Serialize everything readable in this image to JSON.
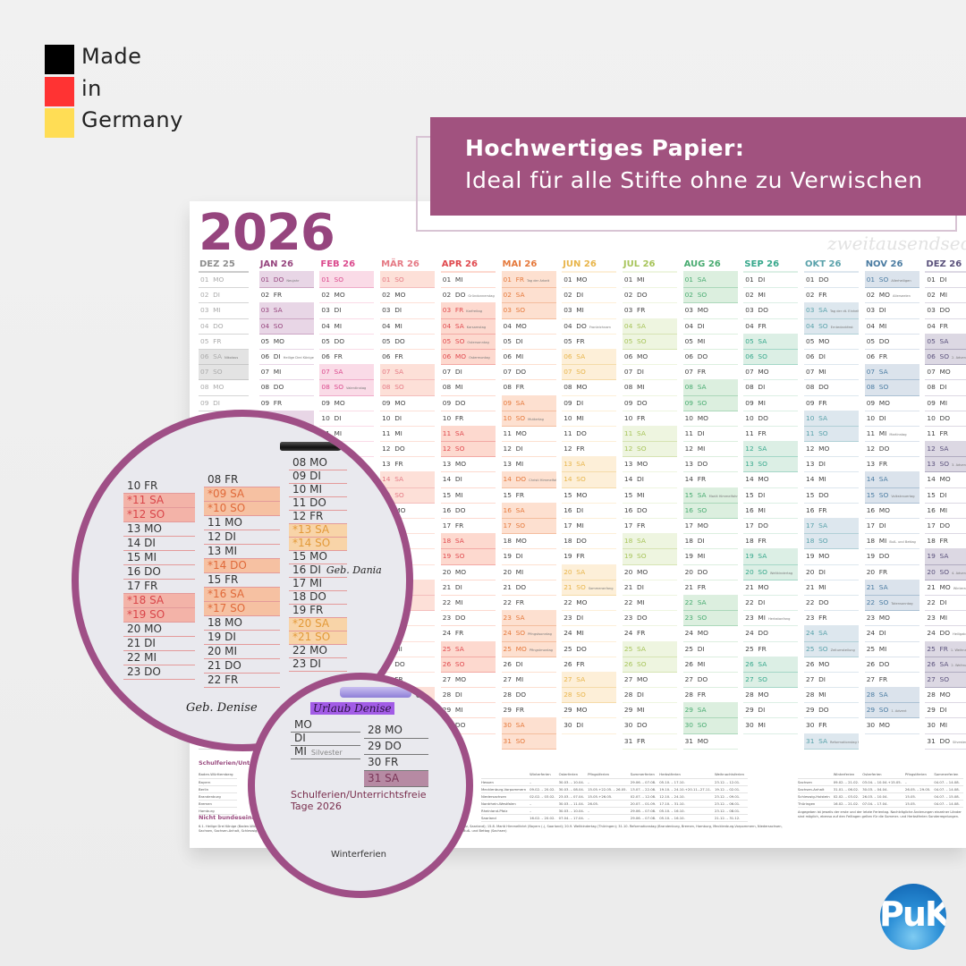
{
  "made_in": {
    "lines": [
      "Made",
      "in",
      "Germany"
    ],
    "flag_colors": [
      "#000000",
      "#ff3333",
      "#ffdd55"
    ]
  },
  "banner": {
    "title": "Hochwertiges Papier:",
    "subtitle": "Ideal für alle Stifte ohne zu Verwischen",
    "color": "#a1527f"
  },
  "calendar": {
    "year": "2026",
    "brand": "zweitausendsechs",
    "weekdays": [
      "MO",
      "DI",
      "MI",
      "DO",
      "FR",
      "SA",
      "SO"
    ],
    "months": [
      {
        "label": "DEZ 25",
        "first_weekday": 0,
        "days": 31,
        "color": "#8f8f8f",
        "light": "#e3e3e3",
        "faded": true,
        "holidays": [
          {
            "day": 6,
            "name": "Nikolaus"
          }
        ]
      },
      {
        "label": "JAN 26",
        "first_weekday": 3,
        "days": 31,
        "color": "#96457e",
        "light": "#e8d6e6",
        "holidays": [
          {
            "day": 1,
            "name": "Neujahr",
            "public": true
          },
          {
            "day": 6,
            "name": "Heilige Drei Könige"
          }
        ]
      },
      {
        "label": "FEB 26",
        "first_weekday": 6,
        "days": 28,
        "color": "#db4b8e",
        "light": "#fadbe7",
        "holidays": [
          {
            "day": 8,
            "name": "Valentinstag"
          }
        ]
      },
      {
        "label": "MÄR 26",
        "first_weekday": 6,
        "days": 31,
        "color": "#e57a85",
        "light": "#fde0d8",
        "holidays": []
      },
      {
        "label": "APR 26",
        "first_weekday": 2,
        "days": 30,
        "color": "#e04a4f",
        "light": "#fdd9cf",
        "holidays": [
          {
            "day": 2,
            "name": "Gründonnerstag"
          },
          {
            "day": 3,
            "name": "Karfreitag",
            "public": true
          },
          {
            "day": 4,
            "name": "Karsamstag",
            "public": true
          },
          {
            "day": 5,
            "name": "Ostersonntag",
            "public": true
          },
          {
            "day": 6,
            "name": "Ostermontag",
            "public": true
          }
        ]
      },
      {
        "label": "MAI 26",
        "first_weekday": 4,
        "days": 31,
        "color": "#e5793c",
        "light": "#fde0d0",
        "holidays": [
          {
            "day": 1,
            "name": "Tag der Arbeit",
            "public": true
          },
          {
            "day": 10,
            "name": "Muttertag"
          },
          {
            "day": 14,
            "name": "Christi Himmelfahrt",
            "public": true
          },
          {
            "day": 24,
            "name": "Pfingstsonntag"
          },
          {
            "day": 25,
            "name": "Pfingstmontag",
            "public": true
          }
        ]
      },
      {
        "label": "JUN 26",
        "first_weekday": 0,
        "days": 30,
        "color": "#e8b54b",
        "light": "#fdefd8",
        "holidays": [
          {
            "day": 4,
            "name": "Fronleichnam"
          },
          {
            "day": 21,
            "name": "Sommeranfang"
          }
        ]
      },
      {
        "label": "JUL 26",
        "first_weekday": 2,
        "days": 31,
        "color": "#a7c45a",
        "light": "#eef5e0",
        "holidays": []
      },
      {
        "label": "AUG 26",
        "first_weekday": 5,
        "days": 31,
        "color": "#4aac72",
        "light": "#dcefdf",
        "holidays": [
          {
            "day": 15,
            "name": "Mariä Himmelfahrt"
          }
        ]
      },
      {
        "label": "SEP 26",
        "first_weekday": 1,
        "days": 30,
        "color": "#37a88c",
        "light": "#dcefe5",
        "holidays": [
          {
            "day": 20,
            "name": "Weltkindertag"
          },
          {
            "day": 23,
            "name": "Herbstanfang"
          }
        ]
      },
      {
        "label": "OKT 26",
        "first_weekday": 3,
        "days": 31,
        "color": "#5aa2ab",
        "light": "#dde7ee",
        "holidays": [
          {
            "day": 3,
            "name": "Tag der dt. Einheit",
            "public": true
          },
          {
            "day": 4,
            "name": "Erntedankfest"
          },
          {
            "day": 25,
            "name": "Zeitumstellung"
          },
          {
            "day": 31,
            "name": "Reformationstag Halloween"
          }
        ]
      },
      {
        "label": "NOV 26",
        "first_weekday": 6,
        "days": 30,
        "color": "#4b7ca2",
        "light": "#dbe3ec",
        "holidays": [
          {
            "day": 1,
            "name": "Allerheiligen"
          },
          {
            "day": 2,
            "name": "Allerseelen"
          },
          {
            "day": 11,
            "name": "Martinstag"
          },
          {
            "day": 15,
            "name": "Volkstrauertag"
          },
          {
            "day": 18,
            "name": "Buß- und Bettag"
          },
          {
            "day": 22,
            "name": "Totensonntag"
          },
          {
            "day": 29,
            "name": "1. Advent"
          }
        ]
      },
      {
        "label": "DEZ 26",
        "first_weekday": 1,
        "days": 31,
        "color": "#5b527c",
        "light": "#dcd8e3",
        "holidays": [
          {
            "day": 6,
            "name": "2. Advent Nikolaus"
          },
          {
            "day": 13,
            "name": "3. Advent"
          },
          {
            "day": 20,
            "name": "4. Advent"
          },
          {
            "day": 21,
            "name": "Winteranfang"
          },
          {
            "day": 24,
            "name": "Heiligabend"
          },
          {
            "day": 25,
            "name": "1. Weihnachtstag",
            "public": true
          },
          {
            "day": 26,
            "name": "2. Weihnachtstag",
            "public": true
          },
          {
            "day": 31,
            "name": "Silvester"
          }
        ]
      }
    ]
  },
  "holidays_section": {
    "title": "Schulferien/Unterrichtsfreie Tage 2026",
    "columns": [
      "Winterferien",
      "Osterferien",
      "Pfingstferien",
      "Sommerferien",
      "Herbstferien",
      "Weihnachtsferien"
    ],
    "left_states": [
      "Baden-Württemberg",
      "Bayern",
      "Berlin",
      "Brandenburg",
      "Bremen",
      "Hamburg"
    ],
    "middle_rows": [
      [
        "Hessen",
        "–",
        "30.03. – 10.04.",
        "–",
        "29.06. – 07.08.",
        "05.10. – 17.10.",
        "23.12. – 12.01."
      ],
      [
        "Mecklenburg-Vorpommern",
        "09.02. – 20.02.",
        "30.03. – 08.04.",
        "15.05.+22.05. – 26.05.",
        "13.07. – 22.08.",
        "19.10. – 24.10.+20.11.–27.11.",
        "19.12. – 02.01."
      ],
      [
        "Niedersachsen",
        "02.02. – 03.02.",
        "23.03. – 07.04.",
        "15.05.+26.05.",
        "02.07. – 12.08.",
        "12.10. – 24.10.",
        "23.12. – 09.01."
      ],
      [
        "Nordrhein-Westfalen",
        "–",
        "30.03. – 11.04.",
        "26.05.",
        "20.07. – 01.09.",
        "17.10. – 31.10.",
        "23.12. – 06.01."
      ],
      [
        "Rheinland-Pfalz",
        "–",
        "30.03. – 10.04.",
        "–",
        "29.06. – 07.08.",
        "05.10. – 16.10.",
        "23.12. – 08.01."
      ],
      [
        "Saarland",
        "16.02. – 20.02.",
        "07.04. – 17.04.",
        "–",
        "29.06. – 07.08.",
        "05.10. – 16.10.",
        "21.12. – 31.12."
      ]
    ],
    "right_rows": [
      [
        "Sachsen",
        "09.02. – 21.02.",
        "03.04. – 10.04.+15.05.",
        "–",
        "04.07. – 14.08."
      ],
      [
        "Sachsen-Anhalt",
        "31.01. – 06.02.",
        "30.03. – 04.04.",
        "26.05. – 29.05.",
        "04.07. – 14.08."
      ],
      [
        "Schleswig-Holstein",
        "02.02. – 03.02.",
        "26.03. – 10.04.",
        "15.05.",
        "04.07. – 15.08."
      ],
      [
        "Thüringen",
        "16.02. – 21.02.",
        "07.04. – 17.04.",
        "15.05.",
        "04.07. – 14.08."
      ]
    ],
    "note": "Angegeben ist jeweils der erste und der letzte Ferientag. Nachträgliche Änderungen einzelner Länder sind möglich, ebenso auf den Feiltagen gelten für die Sommer- und Herbstferien Sonderregelungen.",
    "nonuniform_title": "Nicht bundeseinheitliche Feiertage",
    "nonuniform_text": "6.1. Heilige Drei Könige (Baden-Württemberg, Bayern, Sachsen-Anhalt); 4.6. Fronleichnam (Baden-Württemberg, Bayern, Hessen, Nordrhein-Westfalen, Rheinland-Pfalz, Saarland); 15.8. Mariä Himmelfahrt (Bayern (-), Saarland); 20.9. Weltkindertag (Thüringen); 31.10. Reformationstag (Brandenburg, Bremen, Hamburg, Mecklenburg-Vorpommern, Niedersachsen, Sachsen, Sachsen-Anhalt, Schleswig-Holstein, Thüringen); 1.11. Allerheiligen (Baden-Württemberg, Bayern, Nordrhein-Westfalen, Rheinland-Pfalz, Saarland); 18.11. Buß- und Bettag (Sachsen)"
  },
  "zoom_circle_1": {
    "columns": [
      [
        "10 FR",
        "*11 SA",
        "*12 SO",
        "13 MO",
        "14 DI",
        "15 MI",
        "16 DO",
        "17 FR",
        "*18 SA",
        "*19 SO",
        "20 MO",
        "21 DI",
        "22 MI",
        "23 DO"
      ],
      [
        "08 FR",
        "*09 SA",
        "*10 SO",
        "11 MO",
        "12 DI",
        "13 MI",
        "*14 DO",
        "15 FR",
        "*16 SA",
        "*17 SO",
        "18 MO",
        "19 DI",
        "20 MI",
        "21 DO",
        "22 FR"
      ],
      [
        "08 MO",
        "09 DI",
        "10 MI",
        "11 DO",
        "12 FR",
        "*13 SA",
        "*14 SO",
        "15 MO",
        "16 DI",
        "17 MI",
        "18 DO",
        "19 FR",
        "*20 SA",
        "*21 SO",
        "22 MO",
        "23 DI"
      ]
    ],
    "handwriting": [
      "Geb. Denise",
      "Geb. Dania"
    ]
  },
  "zoom_circle_2": {
    "rows": [
      "28 MO",
      "29 DO",
      "30 FR",
      "31 SA"
    ],
    "left_rows": [
      "MO",
      "DI",
      "MI"
    ],
    "silvester": "Silvester",
    "heading": "Schulferien/Unterrichtsfreie Tage 2026",
    "sub": "Winterferien",
    "handwriting": "Urlaub Denise"
  },
  "logo": {
    "text": "PuK"
  }
}
